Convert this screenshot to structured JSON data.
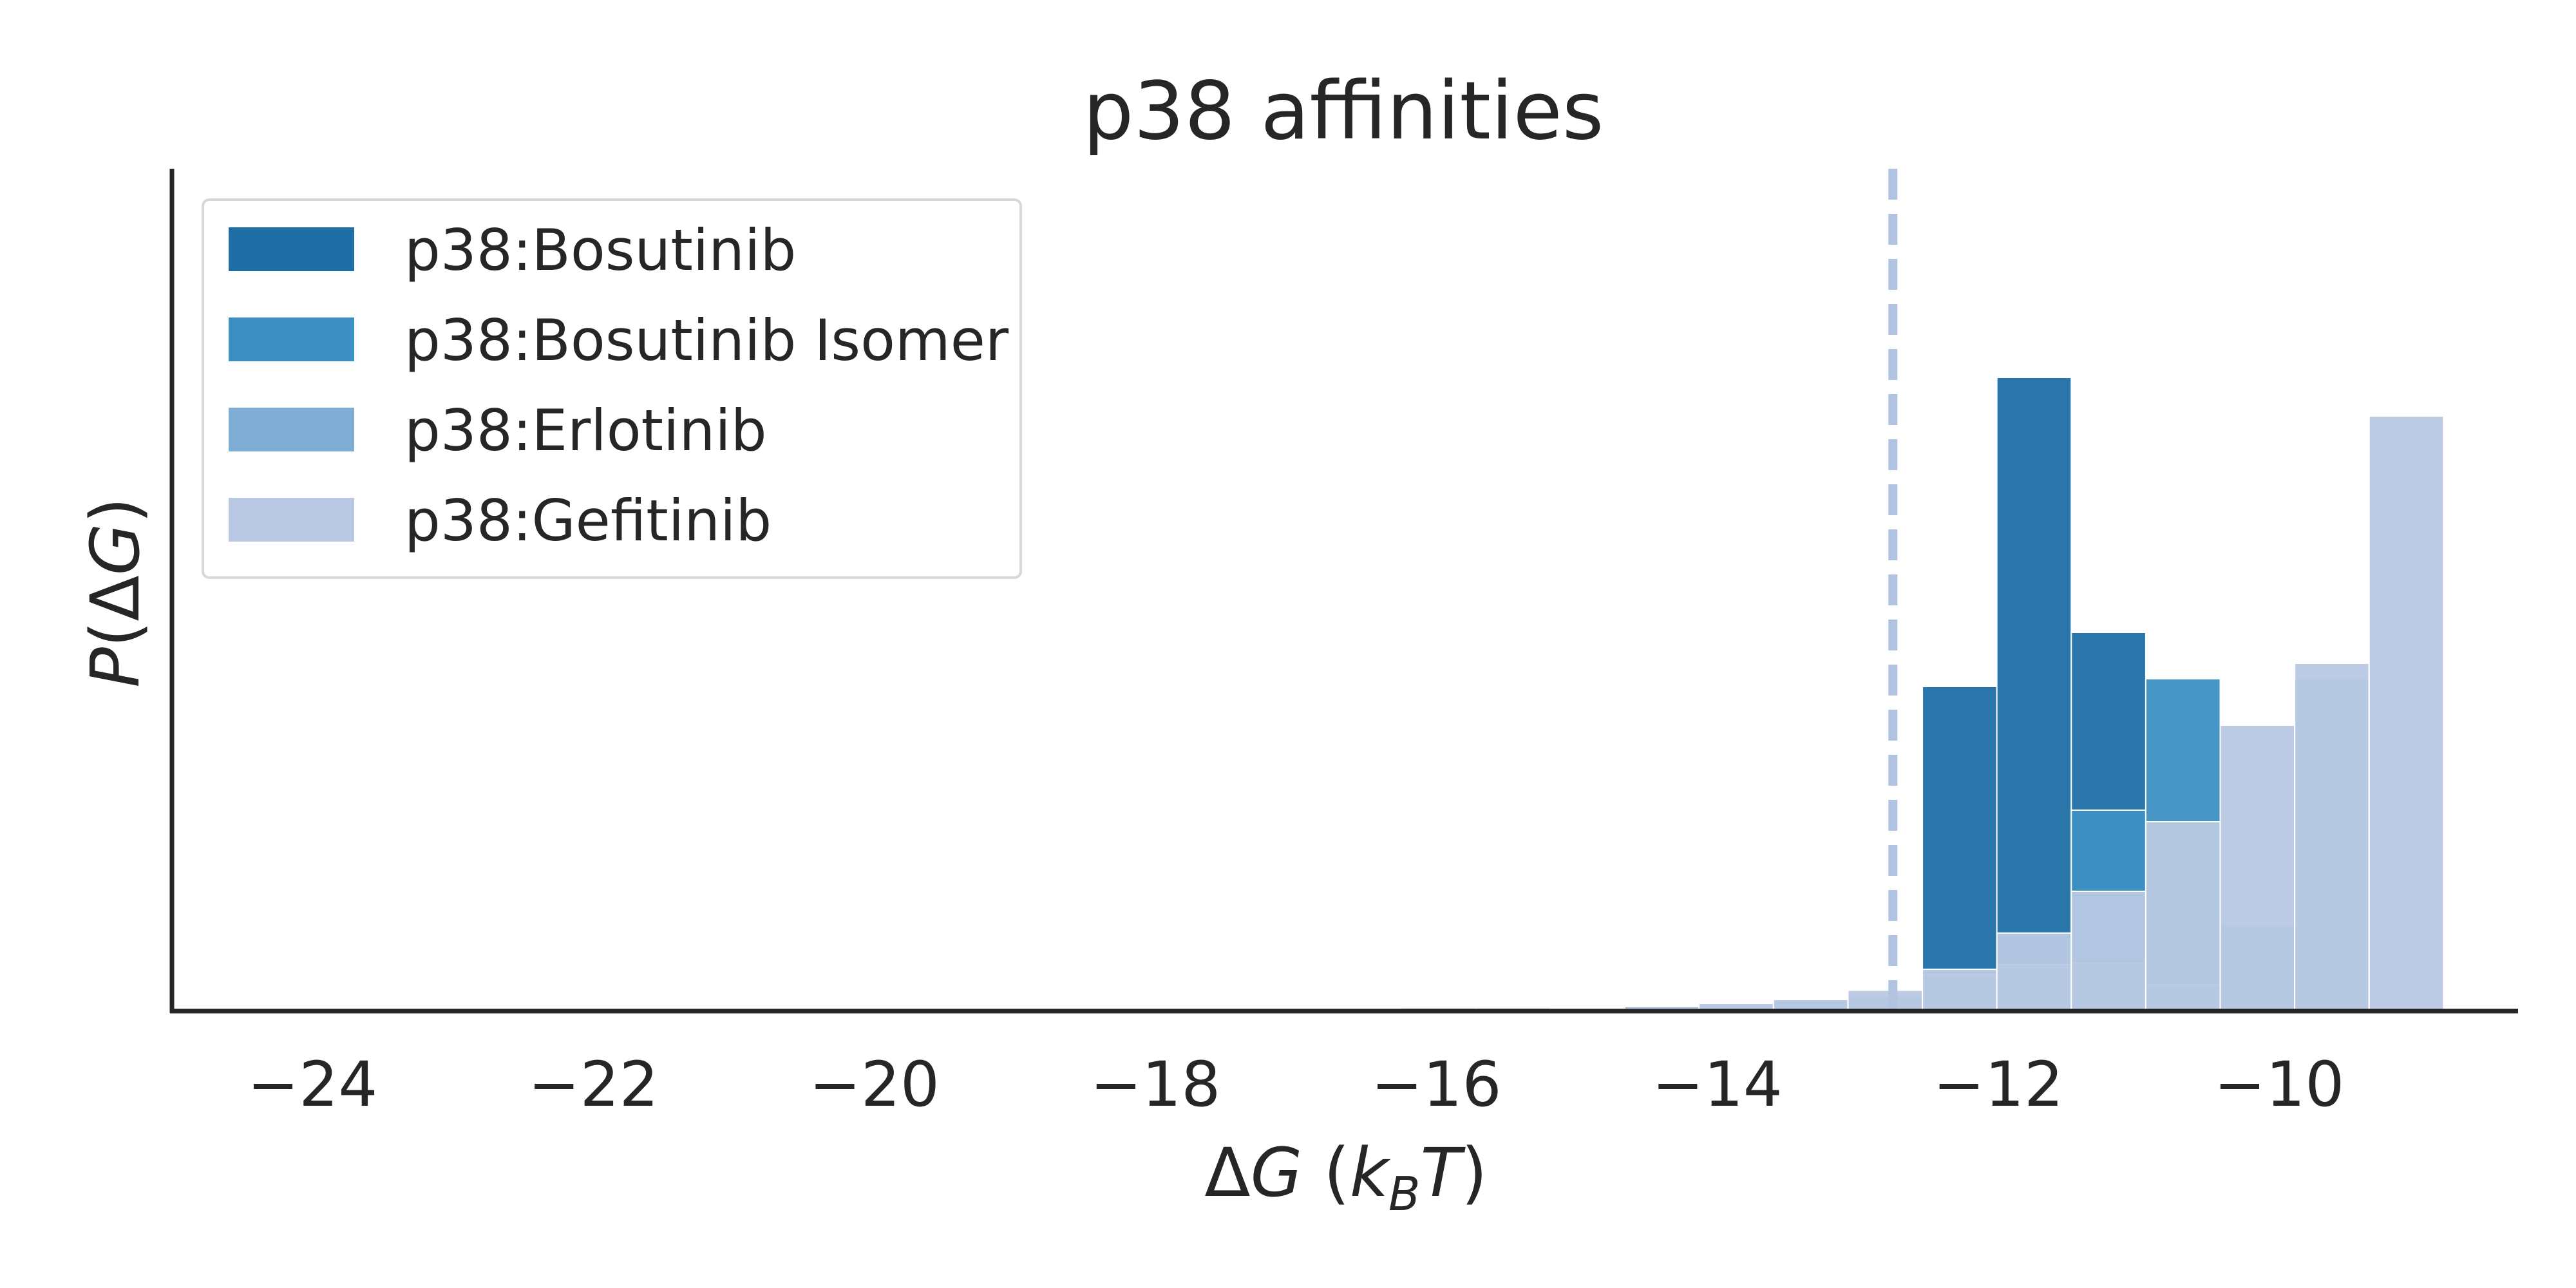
{
  "chart_data": {
    "type": "histogram",
    "title": "p38 affinities",
    "xlabel": "ΔG (k_BT)",
    "ylabel": "P(ΔG)",
    "xlim": [
      -25.0,
      -8.3
    ],
    "ylim": [
      0,
      1.09
    ],
    "x_ticks": [
      "−24",
      "−22",
      "−20",
      "−18",
      "−16",
      "−14",
      "−12",
      "−10"
    ],
    "x_tick_values": [
      -24,
      -22,
      -20,
      -18,
      -16,
      -14,
      -12,
      -10
    ],
    "grid": false,
    "legend_position": "top-left",
    "bin_edges": [
      -24.2,
      -23.67,
      -23.14,
      -22.61,
      -22.08,
      -21.55,
      -21.02,
      -20.49,
      -19.96,
      -19.43,
      -18.9,
      -18.37,
      -17.84,
      -17.31,
      -16.78,
      -16.25,
      -15.72,
      -15.19,
      -14.66,
      -14.13,
      -13.6,
      -13.07,
      -12.54,
      -12.01,
      -11.48,
      -10.95,
      -10.42,
      -9.89,
      -9.36,
      -8.83
    ],
    "reference_line": {
      "x": -12.75,
      "color": "#b2c3e2",
      "style": "dashed"
    },
    "series": [
      {
        "name": "p38:Bosutinib",
        "color": "#1f6fa6",
        "bins": [
          {
            "x0": -12.54,
            "x1": -12.01,
            "value": 0.42
          },
          {
            "x0": -12.01,
            "x1": -11.48,
            "value": 0.82
          },
          {
            "x0": -11.48,
            "x1": -10.95,
            "value": 0.49
          }
        ]
      },
      {
        "name": "p38:Bosutinib Isomer",
        "color": "#3d90c3",
        "bins": [
          {
            "x0": -11.48,
            "x1": -10.95,
            "value": 0.26
          },
          {
            "x0": -10.95,
            "x1": -10.42,
            "value": 0.43
          },
          {
            "x0": -10.42,
            "x1": -9.89,
            "value": 0.1
          }
        ]
      },
      {
        "name": "p38:Erlotinib",
        "color": "#7fadd3",
        "bins": [
          {
            "x0": -16.25,
            "x1": -15.72,
            "value": 0.004
          },
          {
            "x0": -15.72,
            "x1": -15.19,
            "value": 0.004
          },
          {
            "x0": -15.19,
            "x1": -14.66,
            "value": 0.004
          },
          {
            "x0": -14.66,
            "x1": -14.13,
            "value": 0.006
          },
          {
            "x0": -14.13,
            "x1": -13.6,
            "value": 0.008
          },
          {
            "x0": -13.6,
            "x1": -13.07,
            "value": 0.014
          },
          {
            "x0": -13.07,
            "x1": -12.54,
            "value": 0.02
          },
          {
            "x0": -12.54,
            "x1": -12.01,
            "value": 0.048
          },
          {
            "x0": -12.01,
            "x1": -11.48,
            "value": 0.06
          },
          {
            "x0": -11.48,
            "x1": -10.95,
            "value": 0.062
          },
          {
            "x0": -10.95,
            "x1": -10.42,
            "value": 0.034
          },
          {
            "x0": -10.42,
            "x1": -9.89,
            "value": 0.112
          },
          {
            "x0": -9.89,
            "x1": -9.36,
            "value": 0.43
          }
        ]
      },
      {
        "name": "p38:Gefitinib",
        "color": "#b9c9e3",
        "bins": [
          {
            "x0": -16.25,
            "x1": -15.72,
            "value": 0.002
          },
          {
            "x0": -15.72,
            "x1": -15.19,
            "value": 0.002
          },
          {
            "x0": -15.19,
            "x1": -14.66,
            "value": 0.003
          },
          {
            "x0": -14.66,
            "x1": -14.13,
            "value": 0.006
          },
          {
            "x0": -14.13,
            "x1": -13.6,
            "value": 0.01
          },
          {
            "x0": -13.6,
            "x1": -13.07,
            "value": 0.015
          },
          {
            "x0": -13.07,
            "x1": -12.54,
            "value": 0.027
          },
          {
            "x0": -12.54,
            "x1": -12.01,
            "value": 0.054
          },
          {
            "x0": -12.01,
            "x1": -11.48,
            "value": 0.101
          },
          {
            "x0": -11.48,
            "x1": -10.95,
            "value": 0.155
          },
          {
            "x0": -10.95,
            "x1": -10.42,
            "value": 0.245
          },
          {
            "x0": -10.42,
            "x1": -9.89,
            "value": 0.37
          },
          {
            "x0": -9.89,
            "x1": -9.36,
            "value": 0.45
          },
          {
            "x0": -9.36,
            "x1": -8.83,
            "value": 0.77
          }
        ]
      }
    ]
  }
}
